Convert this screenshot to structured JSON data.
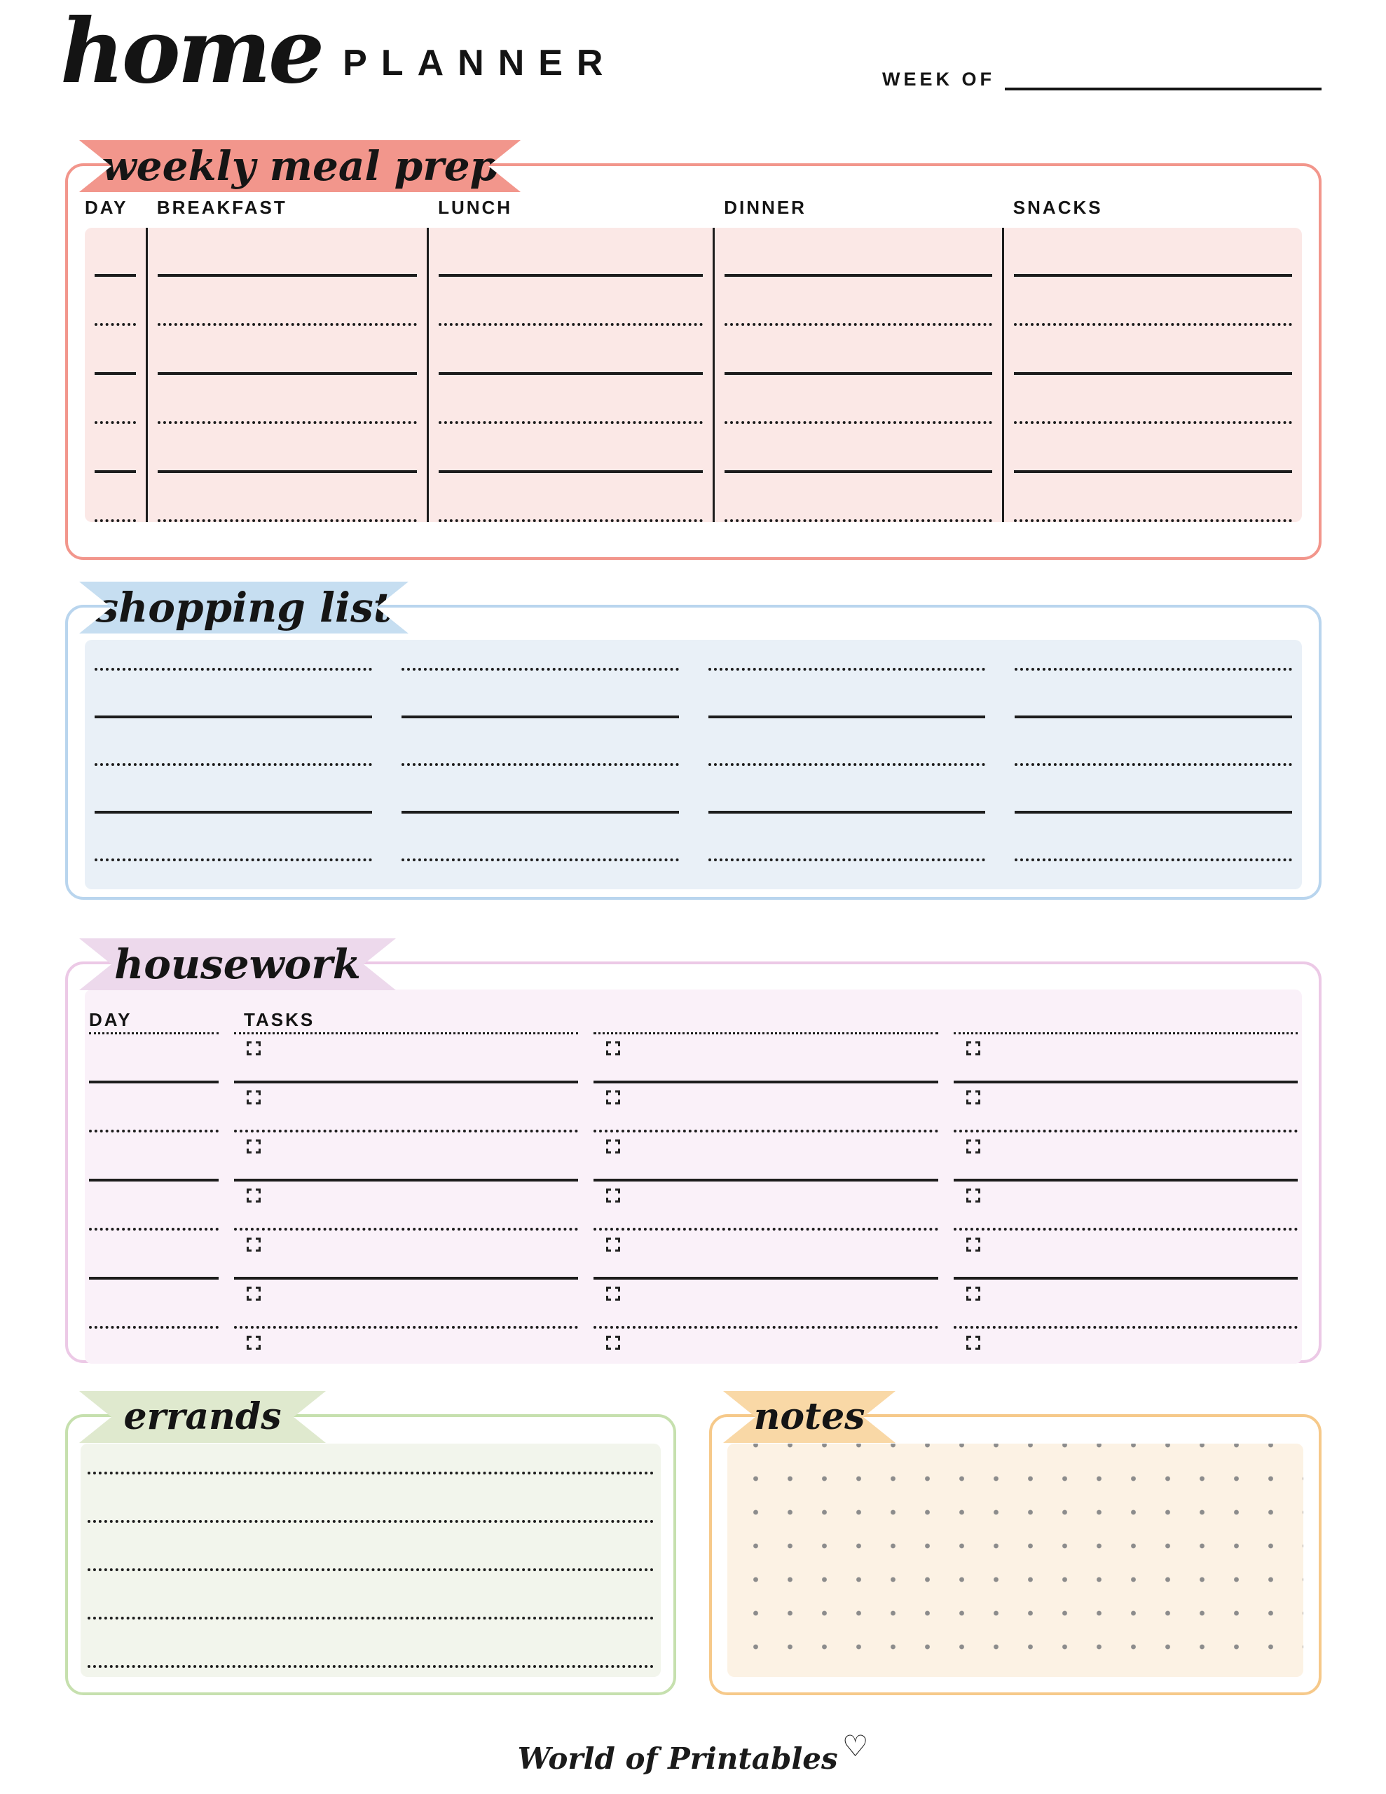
{
  "header": {
    "title_script": "home",
    "title_caps": "PLANNER",
    "week_of_label": "WEEK OF"
  },
  "sections": {
    "meal_prep": {
      "title": "weekly meal prep",
      "columns": [
        "DAY",
        "BREAKFAST",
        "LUNCH",
        "DINNER",
        "SNACKS"
      ],
      "row_count": 6
    },
    "shopping": {
      "title": "shopping list",
      "column_count": 4,
      "row_count": 5
    },
    "housework": {
      "title": "housework",
      "day_label": "DAY",
      "tasks_label": "TASKS",
      "task_column_count": 3,
      "row_count": 6
    },
    "errands": {
      "title": "errands",
      "row_count": 5
    },
    "notes": {
      "title": "notes"
    }
  },
  "footer": {
    "brand": "World of Printables",
    "heart_icon": "♡"
  },
  "colors": {
    "meal-accent": "#f2968c",
    "meal-bg": "#fbe8e6",
    "shop-accent": "#c6def1",
    "shop-border": "#b9d5ee",
    "shop-bg": "#e9f0f7",
    "hw-accent": "#edd9ec",
    "hw-border": "#ecc9e6",
    "hw-bg": "#faf1f9",
    "err-accent": "#dfe9ce",
    "err-border": "#c6e0ae",
    "err-bg": "#f2f5ec",
    "notes-accent": "#f9d8a6",
    "notes-border": "#f6c98a",
    "notes-bg": "#fcf2e4"
  }
}
